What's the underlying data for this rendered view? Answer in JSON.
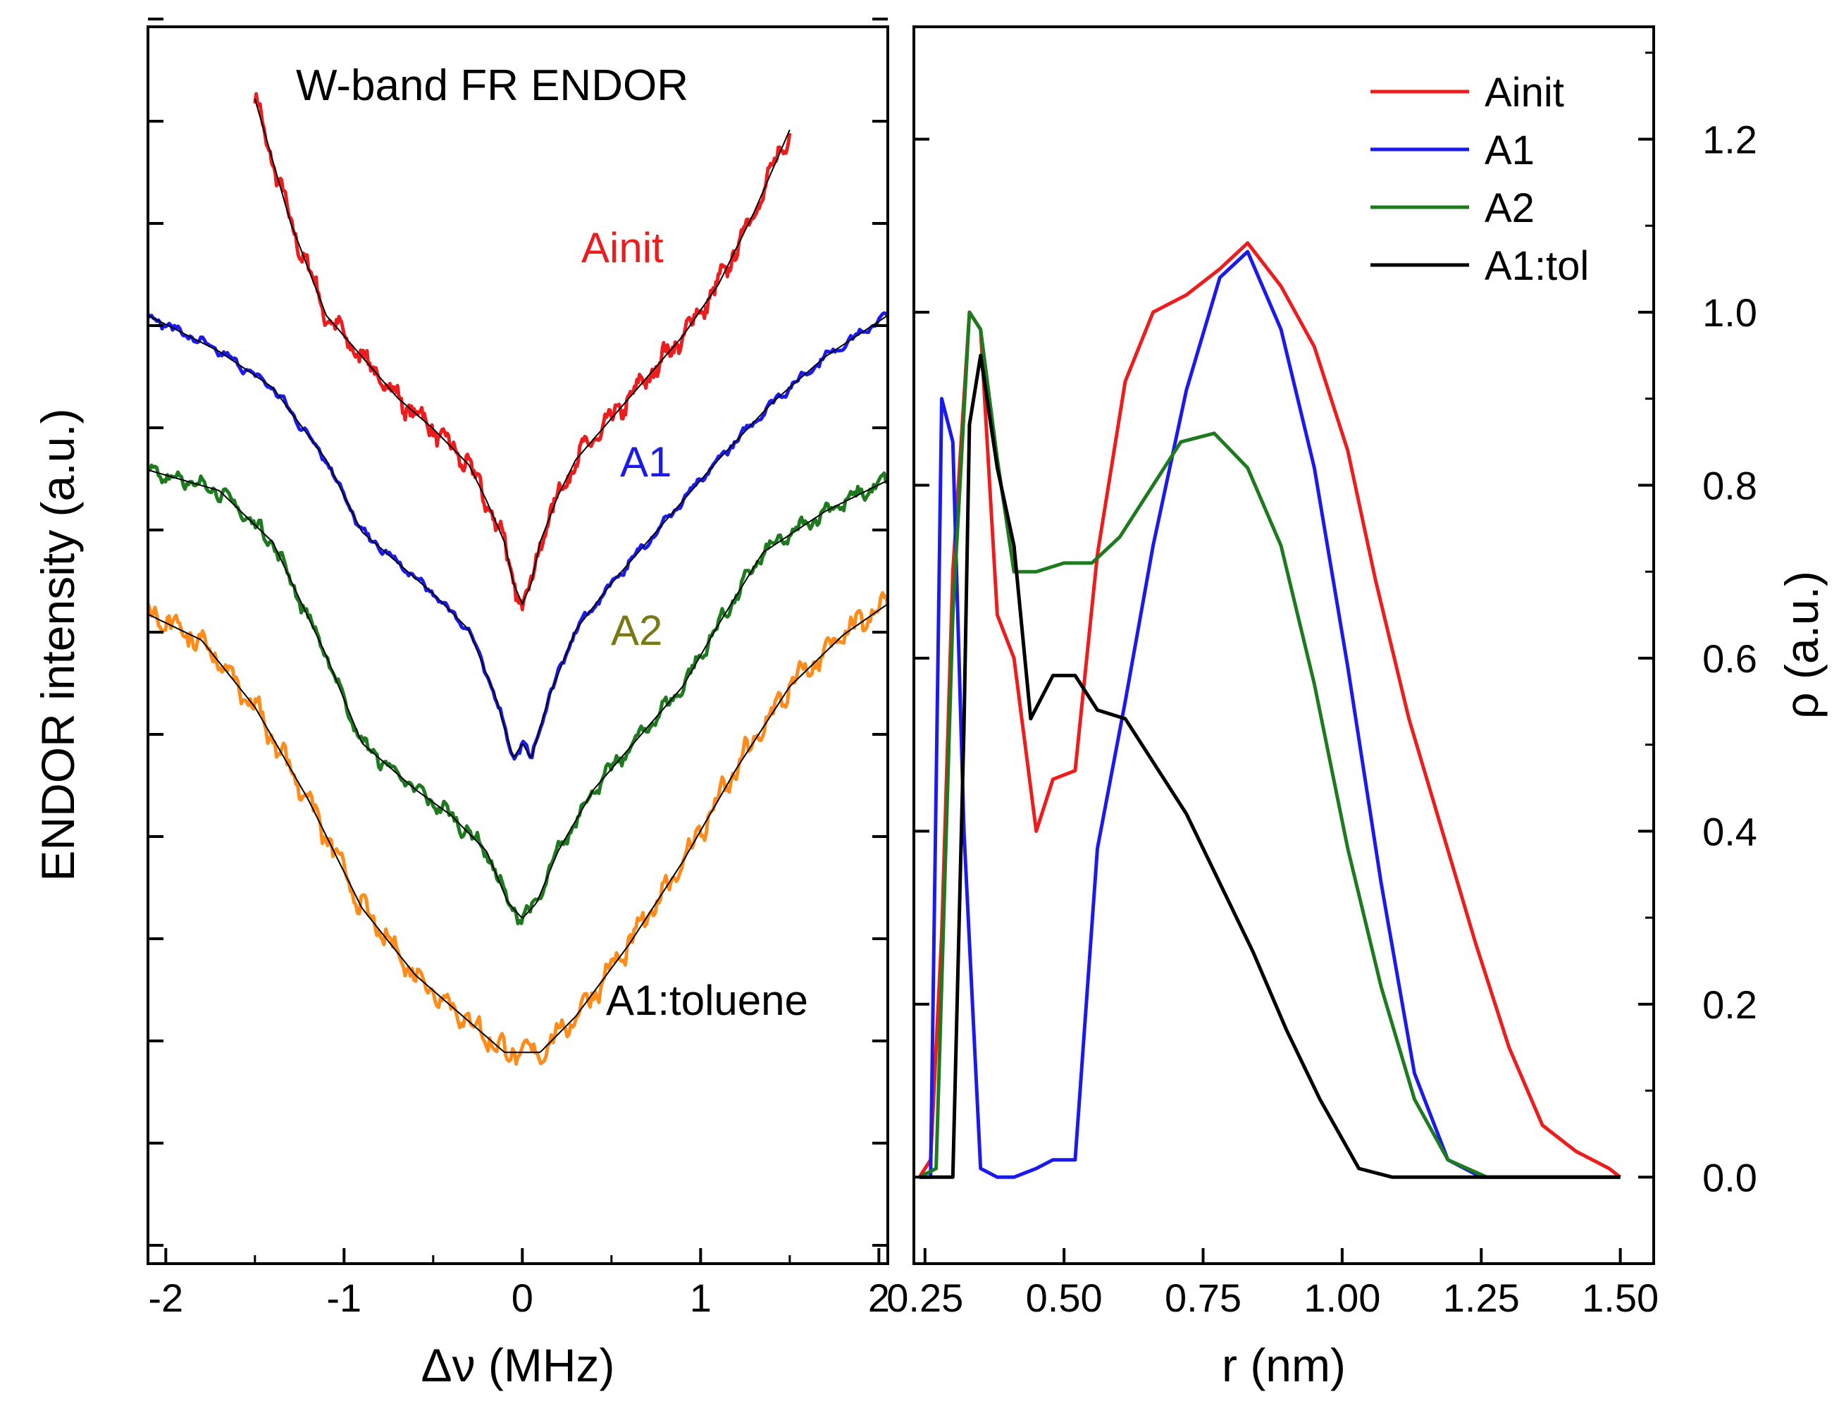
{
  "colors": {
    "Ainit": "#ee1c1c",
    "A1": "#1a1aee",
    "A2": "#1e7a1e",
    "A1:tol": "#000000",
    "A1:toluene": "#ff8c1a",
    "fit": "#000000",
    "A2_label": "#7a7a14"
  },
  "chart_data": [
    {
      "type": "line",
      "panel": "left",
      "title": "W-band FR ENDOR",
      "xlabel": "Δν (MHz)",
      "ylabel": "ENDOR intensity (a.u.)",
      "xlim": [
        -2.1,
        2.05
      ],
      "ylim": [
        0,
        12
      ],
      "x_ticks": [
        -2,
        -1,
        0,
        1,
        2
      ],
      "x_tick_labels": [
        "-2",
        "-1",
        "0",
        "1",
        "2"
      ],
      "y_tick_count": 13,
      "y_tick_labels_shown": false,
      "series": [
        {
          "name": "Ainit",
          "label": "Ainit",
          "color_key": "Ainit",
          "noise": 0.13,
          "x": [
            -1.5,
            -1.3,
            -1.1,
            -0.9,
            -0.7,
            -0.5,
            -0.3,
            -0.2,
            -0.1,
            -0.05,
            0.0,
            0.05,
            0.1,
            0.2,
            0.3,
            0.5,
            0.7,
            0.9,
            1.1,
            1.3,
            1.5
          ],
          "y": [
            11.3,
            10.1,
            9.2,
            8.8,
            8.4,
            8.1,
            7.75,
            7.4,
            7.0,
            6.6,
            6.4,
            6.6,
            7.0,
            7.45,
            7.8,
            8.2,
            8.6,
            9.0,
            9.5,
            10.2,
            11.0
          ]
        },
        {
          "name": "A1",
          "label": "A1",
          "color_key": "A1",
          "noise": 0.05,
          "x": [
            -2.1,
            -1.7,
            -1.4,
            -1.1,
            -0.9,
            -0.7,
            -0.5,
            -0.3,
            -0.15,
            -0.05,
            0.0,
            0.05,
            0.15,
            0.3,
            0.5,
            0.7,
            0.9,
            1.1,
            1.4,
            1.7,
            2.05
          ],
          "y": [
            9.2,
            8.85,
            8.5,
            7.8,
            7.1,
            6.8,
            6.5,
            6.15,
            5.5,
            4.9,
            5.05,
            4.9,
            5.5,
            6.15,
            6.6,
            7.0,
            7.4,
            7.8,
            8.35,
            8.8,
            9.2
          ]
        },
        {
          "name": "A2",
          "label": "A2",
          "color_key": "A2",
          "noise": 0.09,
          "x": [
            -2.1,
            -1.7,
            -1.4,
            -1.1,
            -0.9,
            -0.6,
            -0.4,
            -0.2,
            -0.08,
            0.0,
            0.08,
            0.2,
            0.4,
            0.6,
            0.9,
            1.1,
            1.35,
            1.7,
            2.05
          ],
          "y": [
            7.7,
            7.5,
            7.0,
            5.9,
            5.05,
            4.6,
            4.35,
            4.0,
            3.5,
            3.35,
            3.5,
            4.0,
            4.6,
            5.0,
            5.6,
            6.2,
            6.9,
            7.3,
            7.6
          ]
        },
        {
          "name": "A1:toluene",
          "label": "A1:toluene",
          "color_key": "A1:toluene",
          "noise": 0.15,
          "x": [
            -2.1,
            -1.8,
            -1.5,
            -1.2,
            -0.9,
            -0.6,
            -0.3,
            -0.1,
            0.0,
            0.1,
            0.3,
            0.6,
            0.9,
            1.2,
            1.5,
            1.8,
            2.05
          ],
          "y": [
            6.3,
            6.05,
            5.4,
            4.5,
            3.45,
            2.8,
            2.35,
            2.05,
            2.05,
            2.05,
            2.4,
            3.1,
            3.9,
            4.8,
            5.6,
            6.1,
            6.4
          ]
        }
      ],
      "annotations": [
        "Ainit",
        "A1",
        "A2",
        "A1:toluene"
      ]
    },
    {
      "type": "line",
      "panel": "right",
      "xlabel": "r (nm)",
      "ylabel": "ρ (a.u.)",
      "xlim": [
        0.23,
        1.56
      ],
      "ylim": [
        -0.1,
        1.33
      ],
      "x_ticks": [
        0.25,
        0.5,
        0.75,
        1.0,
        1.25,
        1.5
      ],
      "x_tick_labels": [
        "0.25",
        "0.50",
        "0.75",
        "1.00",
        "1.25",
        "1.50"
      ],
      "y_ticks": [
        0.0,
        0.2,
        0.4,
        0.6,
        0.8,
        1.0,
        1.2
      ],
      "y_tick_labels": [
        "0.0",
        "0.2",
        "0.4",
        "0.6",
        "0.8",
        "1.0",
        "1.2"
      ],
      "legend": {
        "position": "top-right",
        "entries": [
          "Ainit",
          "A1",
          "A2",
          "A1:tol"
        ]
      },
      "series": [
        {
          "name": "Ainit",
          "color_key": "Ainit",
          "x": [
            0.24,
            0.26,
            0.28,
            0.3,
            0.33,
            0.35,
            0.38,
            0.41,
            0.45,
            0.48,
            0.52,
            0.56,
            0.61,
            0.66,
            0.72,
            0.78,
            0.83,
            0.89,
            0.95,
            1.01,
            1.06,
            1.12,
            1.18,
            1.24,
            1.3,
            1.36,
            1.42,
            1.48,
            1.5
          ],
          "y": [
            0.0,
            0.02,
            0.28,
            0.7,
            1.0,
            0.98,
            0.65,
            0.6,
            0.4,
            0.46,
            0.47,
            0.72,
            0.92,
            1.0,
            1.02,
            1.05,
            1.08,
            1.03,
            0.96,
            0.84,
            0.69,
            0.53,
            0.4,
            0.27,
            0.15,
            0.06,
            0.03,
            0.01,
            0.0
          ]
        },
        {
          "name": "A1",
          "color_key": "A1",
          "x": [
            0.24,
            0.26,
            0.28,
            0.3,
            0.32,
            0.35,
            0.38,
            0.41,
            0.45,
            0.48,
            0.52,
            0.56,
            0.61,
            0.66,
            0.72,
            0.78,
            0.83,
            0.89,
            0.95,
            1.01,
            1.07,
            1.13,
            1.19,
            1.25,
            1.3,
            1.4,
            1.5
          ],
          "y": [
            0.0,
            0.0,
            0.9,
            0.85,
            0.4,
            0.01,
            0.0,
            0.0,
            0.01,
            0.02,
            0.02,
            0.38,
            0.55,
            0.73,
            0.91,
            1.04,
            1.07,
            0.98,
            0.82,
            0.59,
            0.34,
            0.12,
            0.02,
            0.0,
            0.0,
            0.0,
            0.0
          ]
        },
        {
          "name": "A2",
          "color_key": "A2",
          "x": [
            0.24,
            0.27,
            0.3,
            0.33,
            0.35,
            0.38,
            0.41,
            0.45,
            0.5,
            0.55,
            0.6,
            0.66,
            0.71,
            0.77,
            0.83,
            0.89,
            0.95,
            1.01,
            1.07,
            1.13,
            1.19,
            1.26,
            1.3,
            1.4,
            1.5
          ],
          "y": [
            0.0,
            0.01,
            0.65,
            1.0,
            0.98,
            0.83,
            0.7,
            0.7,
            0.71,
            0.71,
            0.74,
            0.8,
            0.85,
            0.86,
            0.82,
            0.73,
            0.57,
            0.38,
            0.22,
            0.09,
            0.02,
            0.0,
            0.0,
            0.0,
            0.0
          ]
        },
        {
          "name": "A1:tol",
          "color_key": "A1:tol",
          "x": [
            0.24,
            0.3,
            0.32,
            0.33,
            0.35,
            0.38,
            0.41,
            0.44,
            0.48,
            0.52,
            0.56,
            0.61,
            0.66,
            0.72,
            0.78,
            0.84,
            0.9,
            0.96,
            1.03,
            1.09,
            1.16,
            1.24,
            1.3,
            1.4,
            1.5
          ],
          "y": [
            0.0,
            0.0,
            0.52,
            0.87,
            0.95,
            0.82,
            0.73,
            0.53,
            0.58,
            0.58,
            0.54,
            0.53,
            0.48,
            0.42,
            0.34,
            0.26,
            0.17,
            0.09,
            0.01,
            0.0,
            0.0,
            0.0,
            0.0,
            0.0,
            0.0
          ]
        }
      ]
    }
  ]
}
